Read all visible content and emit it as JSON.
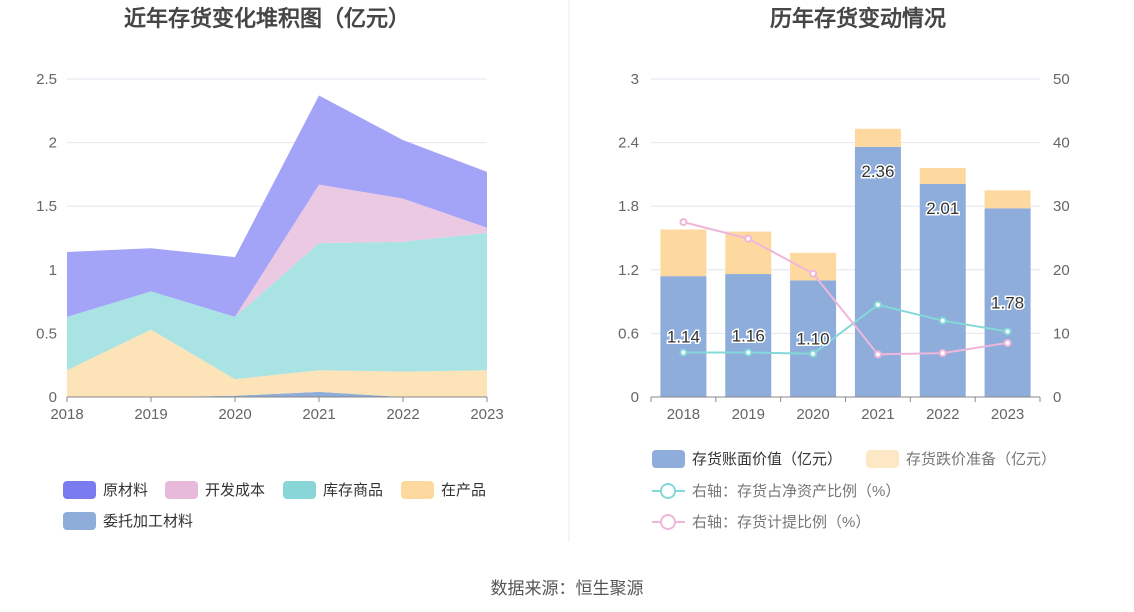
{
  "source": "数据来源：恒生聚源",
  "chart_data": [
    {
      "type": "area",
      "stacked": true,
      "title": "近年存货变化堆积图（亿元）",
      "categories": [
        "2018",
        "2019",
        "2020",
        "2021",
        "2022",
        "2023"
      ],
      "ylim": [
        0,
        2.5
      ],
      "yticks": [
        "0",
        "0.5",
        "1",
        "1.5",
        "2",
        "2.5"
      ],
      "grid": true,
      "legend_position": "bottom",
      "series": [
        {
          "name": "委托加工材料",
          "color": "#8fadd9",
          "values": [
            0.0,
            0.0,
            0.01,
            0.04,
            0.0,
            0.0
          ]
        },
        {
          "name": "在产品",
          "color": "#fde3b8",
          "values": [
            0.21,
            0.53,
            0.13,
            0.17,
            0.2,
            0.21
          ]
        },
        {
          "name": "库存商品",
          "color": "#a9e3e4",
          "values": [
            0.42,
            0.3,
            0.49,
            1.0,
            1.02,
            1.08
          ]
        },
        {
          "name": "开发成本",
          "color": "#ecc9e2",
          "values": [
            0.0,
            0.0,
            0.0,
            0.46,
            0.34,
            0.04
          ]
        },
        {
          "name": "原材料",
          "color": "#a3a3f7",
          "values": [
            0.51,
            0.34,
            0.47,
            0.7,
            0.46,
            0.44
          ]
        }
      ],
      "legend": [
        {
          "name": "原材料",
          "color": "#7b7bf0"
        },
        {
          "name": "开发成本",
          "color": "#e7b9da"
        },
        {
          "name": "库存商品",
          "color": "#88d6d8"
        },
        {
          "name": "在产品",
          "color": "#fdd9a0"
        },
        {
          "name": "委托加工材料",
          "color": "#8fadd9"
        }
      ]
    },
    {
      "type": "bar",
      "stacked": true,
      "title": "历年存货变动情况",
      "categories": [
        "2018",
        "2019",
        "2020",
        "2021",
        "2022",
        "2023"
      ],
      "ylim": [
        0,
        3
      ],
      "yticks": [
        "0",
        "0.6",
        "1.2",
        "1.8",
        "2.4",
        "3"
      ],
      "y2lim": [
        0,
        50
      ],
      "y2ticks": [
        "0",
        "10",
        "20",
        "30",
        "40",
        "50"
      ],
      "grid": true,
      "legend_position": "bottom",
      "series": [
        {
          "name": "存货账面价值（亿元）",
          "color": "#8eaddb",
          "values": [
            1.14,
            1.16,
            1.1,
            2.36,
            2.01,
            1.78
          ],
          "labels": [
            "1.14",
            "1.16",
            "1.10",
            "2.36",
            "2.01",
            "1.78"
          ]
        },
        {
          "name": "存货跌价准备（亿元）",
          "color": "#fdd9a0",
          "values": [
            0.44,
            0.4,
            0.26,
            0.17,
            0.15,
            0.17
          ]
        }
      ],
      "lines": [
        {
          "name": "右轴：存货占净资产比例（%）",
          "color": "#84d8d8",
          "values": [
            7.0,
            7.0,
            6.8,
            14.5,
            12.0,
            10.3
          ]
        },
        {
          "name": "右轴：存货计提比例（%）",
          "color": "#efb6da",
          "values": [
            27.5,
            24.9,
            19.4,
            6.7,
            6.9,
            8.5
          ]
        }
      ]
    }
  ]
}
